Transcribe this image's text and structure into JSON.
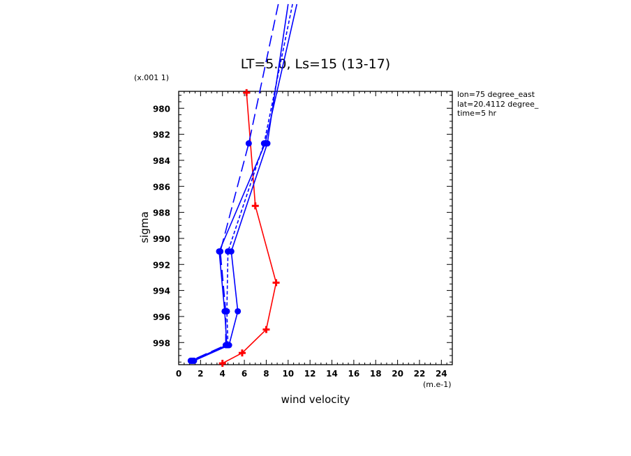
{
  "chart_data": {
    "type": "line",
    "title": "LT=5.0, Ls=15 (13-17)",
    "xlabel": "wind velocity",
    "ylabel": "sigma",
    "x_unit_label": "(m.e-1)",
    "y_unit_label": "(x.001 1)",
    "xlim": [
      0,
      25
    ],
    "ylim": [
      999.7,
      978.7
    ],
    "x_ticks": [
      "0",
      "2",
      "4",
      "6",
      "8",
      "10",
      "12",
      "14",
      "16",
      "18",
      "20",
      "22",
      "24"
    ],
    "y_ticks": [
      "980",
      "982",
      "984",
      "986",
      "988",
      "990",
      "992",
      "994",
      "996",
      "998"
    ],
    "annotations": [
      "lon=75 degree_east",
      "lat=20.4112 degree_",
      "time=5 hr"
    ],
    "series": [
      {
        "color": "#ff0000",
        "style": "solid",
        "marker": "plus",
        "points": [
          [
            6.2,
            978.8
          ],
          [
            7.0,
            987.5
          ],
          [
            8.9,
            993.4
          ],
          [
            8.0,
            997.0
          ],
          [
            5.8,
            998.8
          ],
          [
            4.0,
            999.6
          ]
        ]
      },
      {
        "color": "#0000ff",
        "style": "solid",
        "marker": "dot",
        "points": [
          [
            10.8,
            972.0
          ],
          [
            7.9,
            982.7
          ],
          [
            3.7,
            991.0
          ],
          [
            4.2,
            995.6
          ],
          [
            4.4,
            998.2
          ],
          [
            1.2,
            999.4
          ]
        ]
      },
      {
        "color": "#0000ff",
        "style": "solid",
        "marker": "dot",
        "points": [
          [
            10.0,
            972.0
          ],
          [
            8.1,
            982.7
          ],
          [
            4.8,
            991.0
          ],
          [
            5.4,
            995.6
          ],
          [
            4.6,
            998.2
          ],
          [
            1.4,
            999.4
          ]
        ]
      },
      {
        "color": "#0000ff",
        "style": "longdash",
        "marker": "dot",
        "points": [
          [
            9.1,
            972.0
          ],
          [
            6.4,
            982.7
          ],
          [
            3.8,
            991.0
          ],
          [
            4.3,
            995.6
          ],
          [
            4.3,
            998.2
          ],
          [
            1.1,
            999.4
          ]
        ]
      },
      {
        "color": "#0000ff",
        "style": "shortdash",
        "marker": "dot",
        "points": [
          [
            10.4,
            972.0
          ],
          [
            7.8,
            982.7
          ],
          [
            4.5,
            991.0
          ],
          [
            4.4,
            995.6
          ],
          [
            4.5,
            998.2
          ],
          [
            1.3,
            999.4
          ]
        ]
      }
    ]
  }
}
